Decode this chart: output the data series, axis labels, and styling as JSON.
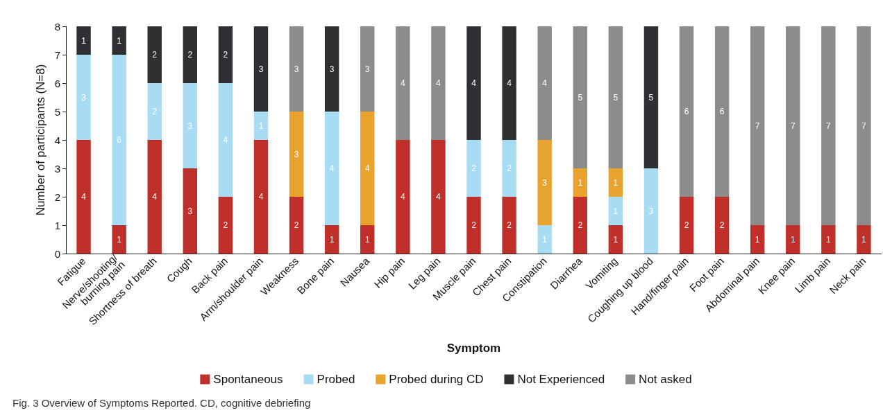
{
  "chart_data": {
    "type": "bar",
    "stacked": true,
    "xlabel": "Symptom",
    "ylabel": "Number of participants (N=8)",
    "categories": [
      "Fatigue",
      "Nerve/shooting/burning pain",
      "Shortness of breath",
      "Cough",
      "Back pain",
      "Arm/shoulder pain",
      "Weakness",
      "Bone pain",
      "Nausea",
      "Hip pain",
      "Leg pain",
      "Muscle pain",
      "Chest pain",
      "Constipation",
      "Diarrhea",
      "Vomiting",
      "Coughing up blood",
      "Hand/finger pain",
      "Foot pain",
      "Abdominal pain",
      "Knee pain",
      "Limb pain",
      "Neck pain"
    ],
    "series": [
      {
        "name": "Spontaneous",
        "color": "#c0302a",
        "values": [
          4,
          1,
          4,
          3,
          2,
          4,
          2,
          1,
          1,
          4,
          4,
          2,
          2,
          null,
          2,
          1,
          null,
          2,
          2,
          1,
          1,
          1,
          1
        ]
      },
      {
        "name": "Probed",
        "color": "#a8dcf2",
        "values": [
          3,
          6,
          2,
          3,
          4,
          1,
          null,
          4,
          null,
          null,
          null,
          2,
          2,
          1,
          null,
          1,
          3,
          null,
          null,
          null,
          null,
          null,
          null
        ]
      },
      {
        "name": "Probed during CD",
        "color": "#e8a22e",
        "values": [
          null,
          null,
          null,
          null,
          null,
          null,
          3,
          null,
          4,
          null,
          null,
          null,
          null,
          3,
          1,
          1,
          null,
          null,
          null,
          null,
          null,
          null,
          null
        ]
      },
      {
        "name": "Not Experienced",
        "color": "#2e3033",
        "values": [
          1,
          1,
          2,
          2,
          2,
          3,
          null,
          3,
          null,
          null,
          null,
          4,
          4,
          null,
          null,
          null,
          5,
          null,
          null,
          null,
          null,
          null,
          null
        ]
      },
      {
        "name": "Not asked",
        "color": "#8c8c8c",
        "values": [
          null,
          null,
          null,
          null,
          null,
          null,
          3,
          null,
          3,
          4,
          4,
          null,
          null,
          4,
          5,
          5,
          null,
          6,
          6,
          7,
          7,
          7,
          7
        ]
      }
    ],
    "ylim": [
      0,
      8
    ],
    "yticks": [
      0,
      1,
      2,
      3,
      4,
      5,
      6,
      7,
      8
    ],
    "grid": false,
    "legend": "bottom",
    "data_labels": true,
    "annotations": [
      "Fig. 3 Overview of Symptoms Reported. CD, cognitive debriefing"
    ]
  }
}
